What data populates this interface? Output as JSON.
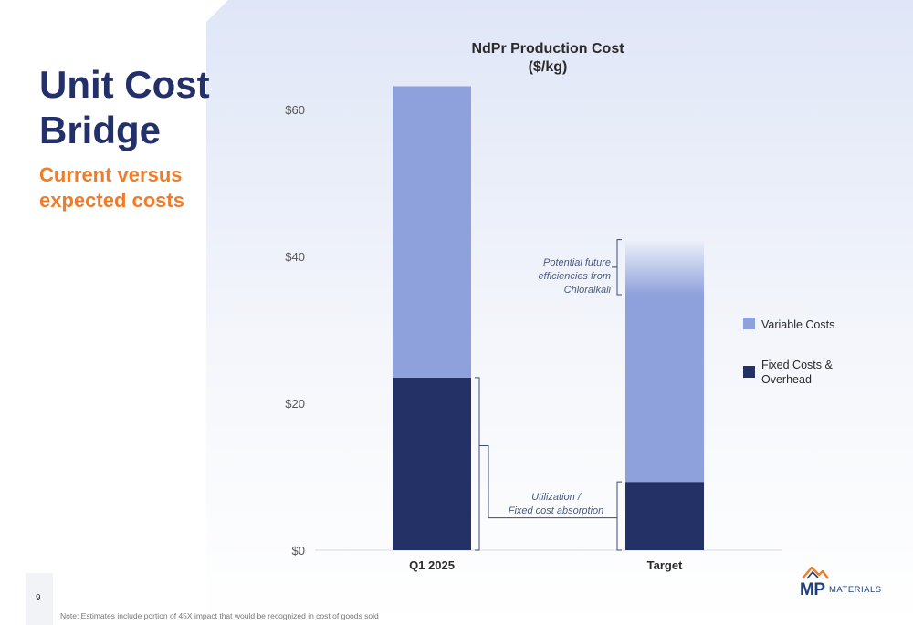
{
  "slide": {
    "title": "Unit Cost Bridge",
    "subtitle": "Current versus expected costs",
    "page_number": "9",
    "footnote": "Note: Estimates include portion of 45X impact that would be recognized in cost of goods sold",
    "logo": {
      "text_mp": "MP",
      "text_word": "MATERIALS"
    }
  },
  "colors": {
    "variable": "#8fa1dc",
    "fixed": "#233166",
    "accent_orange": "#ee7d2b",
    "title_navy": "#23306a"
  },
  "chart_data": {
    "type": "bar",
    "stacked": true,
    "title": "NdPr Production Cost",
    "subtitle": "($/kg)",
    "categories": [
      "Q1 2025",
      "Target"
    ],
    "series": [
      {
        "name": "Fixed Costs & Overhead",
        "values": [
          23.5,
          9.3
        ],
        "color": "#233166"
      },
      {
        "name": "Variable Costs",
        "values": [
          39.7,
          25.5
        ],
        "color": "#8fa1dc"
      },
      {
        "name": "Potential future efficiencies from Chloralkali",
        "values": [
          0,
          7.5
        ],
        "color": "#8fa1dc",
        "faded": true
      }
    ],
    "ylim": [
      0,
      65
    ],
    "yticks": [
      0,
      20,
      40,
      60
    ],
    "ytick_labels": [
      "$0",
      "$20",
      "$40",
      "$60"
    ],
    "legend": {
      "position": "right",
      "entries": [
        {
          "label": "Variable Costs",
          "color": "#8fa1dc"
        },
        {
          "label": "Fixed Costs & Overhead",
          "color": "#233166"
        }
      ]
    },
    "annotations": [
      {
        "id": "chloralkali",
        "lines": [
          "Potential future",
          "efficiencies from",
          "Chloralkali"
        ]
      },
      {
        "id": "utilization",
        "lines": [
          "Utilization /",
          "Fixed cost absorption"
        ]
      }
    ],
    "grid": false
  }
}
